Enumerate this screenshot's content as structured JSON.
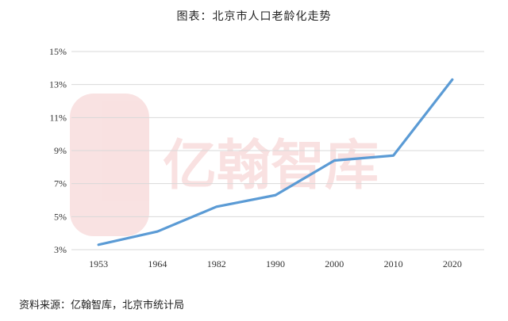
{
  "chart_data": {
    "type": "line",
    "title": "图表：北京市人口老龄化走势",
    "categories": [
      "1953",
      "1964",
      "1982",
      "1990",
      "2000",
      "2010",
      "2020"
    ],
    "series": [
      {
        "values": [
          3.3,
          4.1,
          5.6,
          6.3,
          8.4,
          8.7,
          13.3
        ],
        "color": "#5b9bd5"
      }
    ],
    "yticks": [
      "3%",
      "5%",
      "7%",
      "9%",
      "11%",
      "13%",
      "15%"
    ],
    "ylim": [
      3,
      15
    ],
    "grid": true,
    "xlabel": "",
    "ylabel": ""
  },
  "watermark": "亿翰智库",
  "source": "资料来源：亿翰智库，北京市统计局"
}
